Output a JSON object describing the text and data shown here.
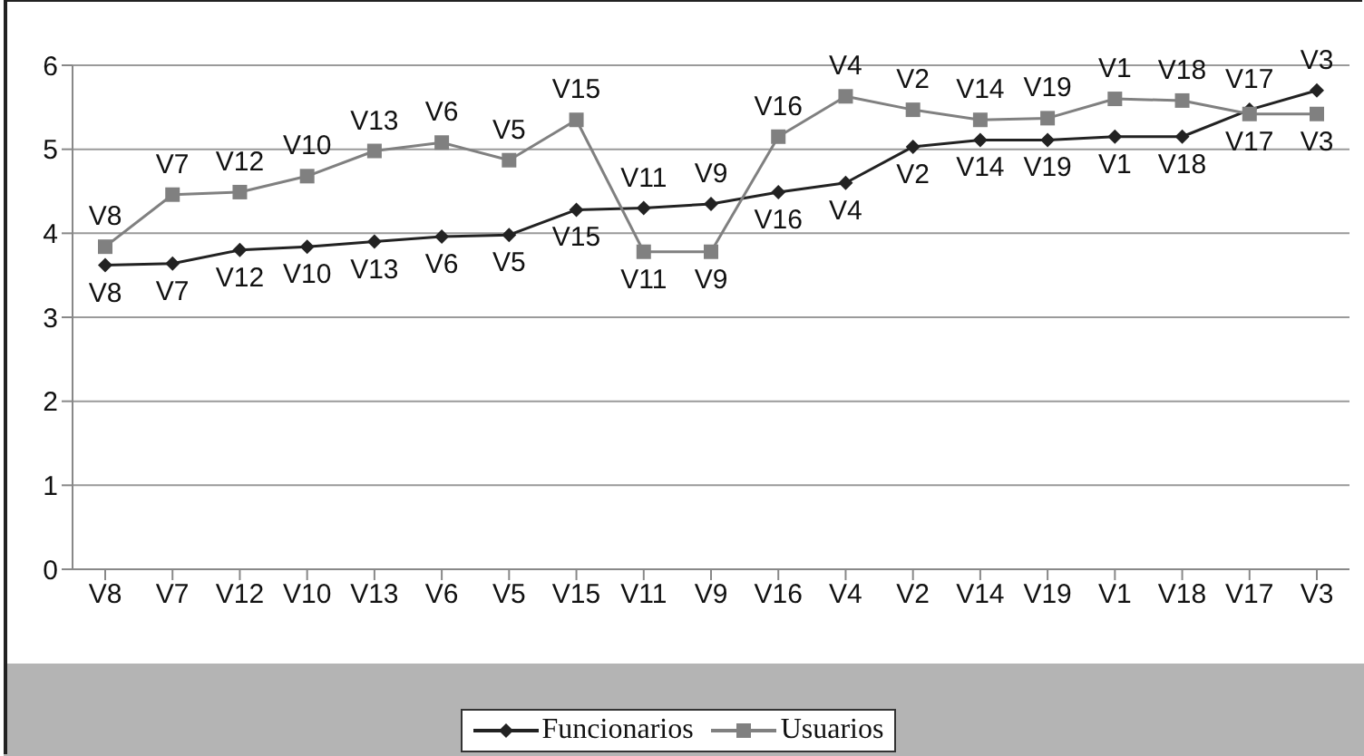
{
  "chart_data": {
    "type": "line",
    "categories": [
      "V8",
      "V7",
      "V12",
      "V10",
      "V13",
      "V6",
      "V5",
      "V15",
      "V11",
      "V9",
      "V16",
      "V4",
      "V2",
      "V14",
      "V19",
      "V1",
      "V18",
      "V17",
      "V3"
    ],
    "series": [
      {
        "name": "Funcionarios",
        "color": "#222222",
        "marker": "diamond",
        "values": [
          3.62,
          3.64,
          3.8,
          3.84,
          3.9,
          3.96,
          3.98,
          4.28,
          4.3,
          4.35,
          4.49,
          4.6,
          5.03,
          5.11,
          5.11,
          5.15,
          5.15,
          5.47,
          5.7
        ],
        "value_labels": [
          "V8",
          "V7",
          "V12",
          "V10",
          "V13",
          "V6",
          "V5",
          "V15",
          "V11",
          "V9",
          "V16",
          "V4",
          "V2",
          "V14",
          "V19",
          "V1",
          "V18",
          "V17",
          "V3"
        ]
      },
      {
        "name": "Usuarios",
        "color": "#808080",
        "marker": "square",
        "values": [
          3.84,
          4.46,
          4.49,
          4.68,
          4.98,
          5.08,
          4.87,
          5.35,
          3.78,
          3.78,
          5.15,
          5.63,
          5.47,
          5.35,
          5.37,
          5.6,
          5.58,
          5.42,
          5.42
        ],
        "value_labels": [
          "V8",
          "V7",
          "V12",
          "V10",
          "V13",
          "V6",
          "V5",
          "V15",
          "V11",
          "V9",
          "V16",
          "V4",
          "V2",
          "V14",
          "V19",
          "V1",
          "V18",
          "V17",
          "V3"
        ]
      }
    ],
    "ylim": [
      0,
      6
    ],
    "yticks": [
      0,
      1,
      2,
      3,
      4,
      5,
      6
    ],
    "grid": "y",
    "legend": "bottom"
  }
}
